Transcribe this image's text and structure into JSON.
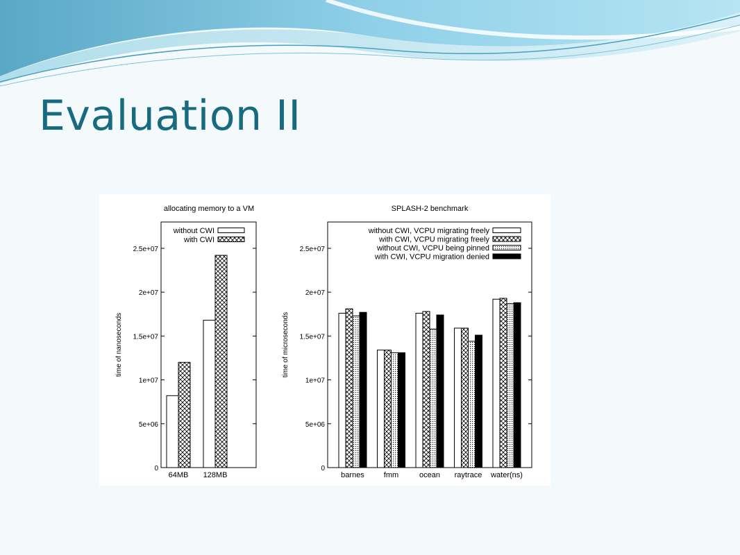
{
  "slide": {
    "title": "Evaluation II"
  },
  "colors": {
    "title": "#176a80",
    "background": "#f4f9fb"
  },
  "chart_data": [
    {
      "type": "bar",
      "title": "allocating memory to a VM",
      "ylabel": "time of nanoseconds",
      "xlabel": "",
      "categories": [
        "64MB",
        "128MB"
      ],
      "ylim": [
        0,
        28000000
      ],
      "yticks": [
        {
          "value": 0,
          "label": "0"
        },
        {
          "value": 5000000,
          "label": "5e+06"
        },
        {
          "value": 10000000,
          "label": "1e+07"
        },
        {
          "value": 15000000,
          "label": "1.5e+07"
        },
        {
          "value": 20000000,
          "label": "2e+07"
        },
        {
          "value": 25000000,
          "label": "2.5e+07"
        }
      ],
      "legend_position": "top-right",
      "grid": false,
      "series": [
        {
          "name": "without CWI",
          "pattern": "empty",
          "values": [
            8200000,
            16800000
          ]
        },
        {
          "name": "with CWI",
          "pattern": "crosshatch",
          "values": [
            12000000,
            24200000
          ]
        }
      ]
    },
    {
      "type": "bar",
      "title": "SPLASH-2 benchmark",
      "ylabel": "time of microseconds",
      "xlabel": "",
      "categories": [
        "barnes",
        "fmm",
        "ocean",
        "raytrace",
        "water(ns)"
      ],
      "ylim": [
        0,
        28000000
      ],
      "yticks": [
        {
          "value": 0,
          "label": "0"
        },
        {
          "value": 5000000,
          "label": "5e+06"
        },
        {
          "value": 10000000,
          "label": "1e+07"
        },
        {
          "value": 15000000,
          "label": "1.5e+07"
        },
        {
          "value": 20000000,
          "label": "2e+07"
        },
        {
          "value": 25000000,
          "label": "2.5e+07"
        }
      ],
      "legend_position": "top-right",
      "grid": false,
      "series": [
        {
          "name": "without CWI, VCPU migrating freely",
          "pattern": "empty",
          "values": [
            17600000,
            13400000,
            17600000,
            15900000,
            19200000
          ]
        },
        {
          "name": "with CWI, VCPU migrating freely",
          "pattern": "crosshatch",
          "values": [
            18100000,
            13400000,
            17800000,
            15900000,
            19300000
          ]
        },
        {
          "name": "without CWI, VCPU being pinned",
          "pattern": "dots",
          "values": [
            17300000,
            13100000,
            15800000,
            14400000,
            18700000
          ]
        },
        {
          "name": "with CWI, VCPU migration denied",
          "pattern": "solid",
          "values": [
            17700000,
            13100000,
            17400000,
            15100000,
            18800000
          ]
        }
      ]
    }
  ]
}
